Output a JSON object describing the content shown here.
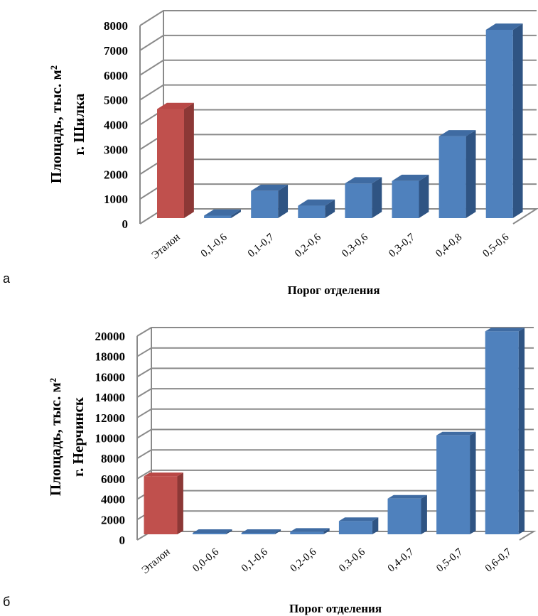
{
  "chart_data": [
    {
      "type": "bar",
      "panel_label": "а",
      "categories": [
        "Эталон",
        "0,1-0,6",
        "0,1-0,7",
        "0,2-0,6",
        "0,3-0,6",
        "0,3-0,7",
        "0,4-0,8",
        "0,5-0,6"
      ],
      "values": [
        4400,
        100,
        1100,
        500,
        1400,
        1500,
        3300,
        7600
      ],
      "highlight_index": 0,
      "yticks": [
        0,
        1000,
        2000,
        3000,
        4000,
        5000,
        6000,
        7000,
        8000
      ],
      "ylim": [
        0,
        8000
      ],
      "ylabel_line1": "Площадь, тыс. м²",
      "ylabel_line2": "г. Шилка",
      "xlabel": "Порог отделения",
      "grid": true
    },
    {
      "type": "bar",
      "panel_label": "б",
      "categories": [
        "Эталон",
        "0,0-0,6",
        "0,1-0,6",
        "0,2-0,6",
        "0,3-0,6",
        "0,4-0,7",
        "0,5-0,7",
        "0,6-0,7"
      ],
      "values": [
        5700,
        80,
        100,
        250,
        1300,
        3500,
        9700,
        19900
      ],
      "highlight_index": 0,
      "yticks": [
        0,
        2000,
        4000,
        6000,
        8000,
        10000,
        12000,
        14000,
        16000,
        18000,
        20000
      ],
      "ylim": [
        0,
        20000
      ],
      "ylabel_line1": "Площадь, тыс. м²",
      "ylabel_line2": "г. Нерчинск",
      "xlabel": "Порог отделения",
      "grid": true
    }
  ],
  "colors": {
    "highlight_front": "#c0504d",
    "highlight_side": "#8c3836",
    "highlight_top": "#b94846",
    "bar_front": "#4f81bd",
    "bar_side": "#2f5483",
    "bar_top": "#3f6ba2",
    "grid": "#8a8a8a"
  }
}
